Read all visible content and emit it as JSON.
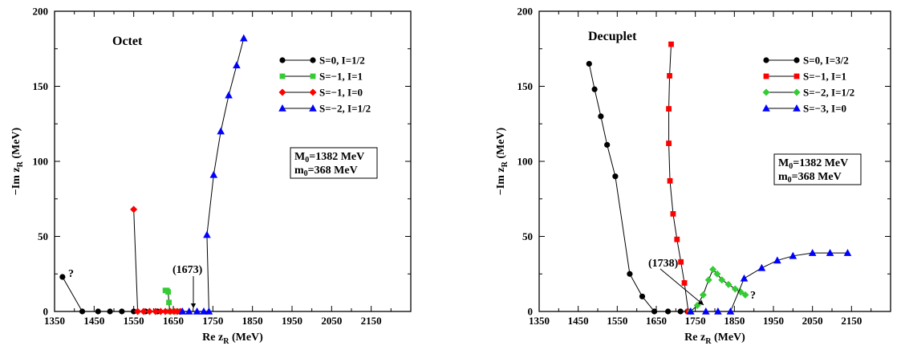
{
  "chart_data": [
    {
      "type": "line",
      "title": "Octet",
      "xlabel": "Re z",
      "xlabel_sub": "R",
      "xlabel_unit": " (MeV)",
      "ylabel": "−Im z",
      "ylabel_sub": "R",
      "ylabel_unit": " (MeV)",
      "xlim": [
        1350,
        2250
      ],
      "ylim": [
        0,
        200
      ],
      "xticks": [
        1350,
        1450,
        1550,
        1650,
        1750,
        1850,
        1950,
        2050,
        2150
      ],
      "yticks": [
        0,
        50,
        100,
        150,
        200
      ],
      "legend_position": "top-right",
      "series": [
        {
          "name": "S=0, I=1/2",
          "color": "#000000",
          "marker": "circle",
          "points": [
            [
              1370,
              23
            ],
            [
              1420,
              0
            ],
            [
              1460,
              0
            ],
            [
              1490,
              0
            ],
            [
              1520,
              0
            ],
            [
              1550,
              0
            ],
            [
              1580,
              0
            ],
            [
              1610,
              0
            ],
            [
              1640,
              0
            ],
            [
              1655,
              0
            ],
            [
              1668,
              0
            ]
          ]
        },
        {
          "name": "S=−1, I=1",
          "color": "#33cc33",
          "marker": "square",
          "points": [
            [
              1630,
              14
            ],
            [
              1634,
              14
            ],
            [
              1637,
              13
            ],
            [
              1639,
              6
            ],
            [
              1641,
              0
            ],
            [
              1645,
              0
            ],
            [
              1650,
              0
            ],
            [
              1655,
              0
            ],
            [
              1660,
              0
            ],
            [
              1666,
              0
            ]
          ]
        },
        {
          "name": "S=−1, I=0",
          "color": "#ff0000",
          "marker": "diamond",
          "points": [
            [
              1550,
              68
            ],
            [
              1560,
              0
            ],
            [
              1575,
              0
            ],
            [
              1590,
              0
            ],
            [
              1605,
              0
            ],
            [
              1618,
              0
            ],
            [
              1630,
              0
            ],
            [
              1642,
              0
            ],
            [
              1652,
              0
            ],
            [
              1660,
              0
            ],
            [
              1668,
              0
            ]
          ]
        },
        {
          "name": "S=−2, I=1/2",
          "color": "#0000ff",
          "marker": "triangle",
          "points": [
            [
              1673,
              0
            ],
            [
              1690,
              0
            ],
            [
              1710,
              0
            ],
            [
              1727,
              0
            ],
            [
              1740,
              0
            ],
            [
              1735,
              51
            ],
            [
              1752,
              91
            ],
            [
              1770,
              120
            ],
            [
              1790,
              144
            ],
            [
              1810,
              164
            ],
            [
              1828,
              182
            ]
          ]
        }
      ],
      "annotations": [
        {
          "text": "?",
          "x": 1385,
          "y": 23
        },
        {
          "text": "(1673)",
          "x": 1645,
          "y": 26
        }
      ],
      "info_box": [
        "M",
        "0",
        "=1382 MeV",
        "m",
        "0",
        "=368 MeV"
      ]
    },
    {
      "type": "line",
      "title": "Decuplet",
      "xlabel": "Re z",
      "xlabel_sub": "R",
      "xlabel_unit": " (MeV)",
      "ylabel": "−Im z",
      "ylabel_sub": "R",
      "ylabel_unit": " (MeV)",
      "xlim": [
        1350,
        2250
      ],
      "ylim": [
        0,
        200
      ],
      "xticks": [
        1350,
        1450,
        1550,
        1650,
        1750,
        1850,
        1950,
        2050,
        2150
      ],
      "yticks": [
        0,
        50,
        100,
        150,
        200
      ],
      "legend_position": "top-right",
      "series": [
        {
          "name": "S=0, I=3/2",
          "color": "#000000",
          "marker": "circle",
          "points": [
            [
              1478,
              165
            ],
            [
              1492,
              148
            ],
            [
              1508,
              130
            ],
            [
              1524,
              111
            ],
            [
              1545,
              90
            ],
            [
              1582,
              25
            ],
            [
              1614,
              10
            ],
            [
              1645,
              0
            ],
            [
              1680,
              0
            ],
            [
              1712,
              0
            ],
            [
              1730,
              0
            ]
          ]
        },
        {
          "name": "S=−1, I=1",
          "color": "#ff0000",
          "marker": "square",
          "points": [
            [
              1688,
              178
            ],
            [
              1684,
              157
            ],
            [
              1682,
              135
            ],
            [
              1682,
              112
            ],
            [
              1685,
              87
            ],
            [
              1693,
              65
            ],
            [
              1703,
              48
            ],
            [
              1713,
              33
            ],
            [
              1722,
              19
            ],
            [
              1732,
              0
            ]
          ]
        },
        {
          "name": "S=−2, I=1/2",
          "color": "#33cc33",
          "marker": "diamond",
          "points": [
            [
              1738,
              0
            ],
            [
              1755,
              4
            ],
            [
              1770,
              11
            ],
            [
              1784,
              21
            ],
            [
              1795,
              28
            ],
            [
              1806,
              25
            ],
            [
              1818,
              21
            ],
            [
              1835,
              18
            ],
            [
              1852,
              15
            ],
            [
              1866,
              13
            ],
            [
              1878,
              11
            ]
          ]
        },
        {
          "name": "S=−3, I=0",
          "color": "#0000ff",
          "marker": "triangle",
          "points": [
            [
              1738,
              0
            ],
            [
              1777,
              0
            ],
            [
              1808,
              0
            ],
            [
              1840,
              0
            ],
            [
              1875,
              22
            ],
            [
              1920,
              29
            ],
            [
              1960,
              34
            ],
            [
              2000,
              37
            ],
            [
              2050,
              39
            ],
            [
              2095,
              39
            ],
            [
              2140,
              39
            ]
          ]
        }
      ],
      "annotations": [
        {
          "text": "?",
          "x": 1892,
          "y": 9
        },
        {
          "text": "(1738)",
          "x": 1638,
          "y": 30
        }
      ],
      "info_box": [
        "M",
        "0",
        "=1382 MeV",
        "m",
        "0",
        "=368 MeV"
      ]
    }
  ]
}
